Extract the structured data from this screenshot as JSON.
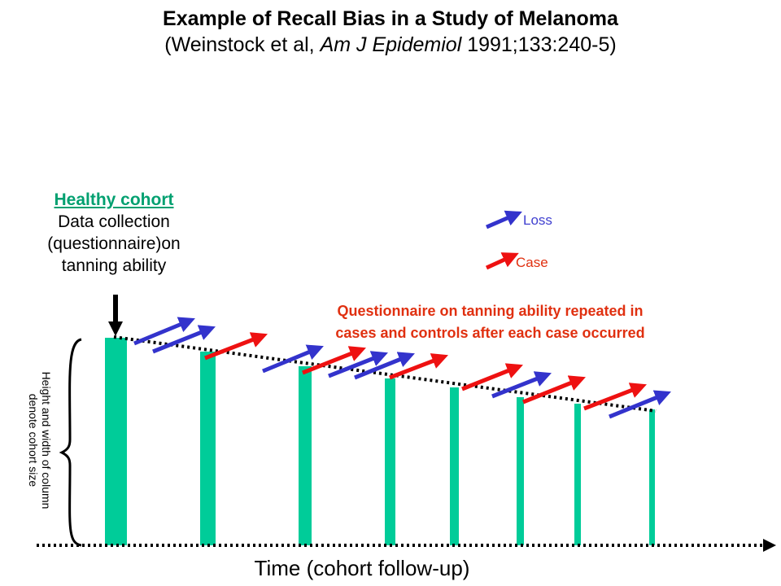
{
  "title": {
    "main": "Example of Recall Bias in a Study of Melanoma",
    "sub_prefix": "(Weinstock et al, ",
    "sub_journal": "Am J Epidemiol",
    "sub_suffix": " 1991;133:240-5)"
  },
  "healthy": {
    "heading": "Healthy cohort",
    "line1": "Data collection",
    "line2": "(questionnaire)on",
    "line3": "tanning ability"
  },
  "legend": {
    "loss": "Loss",
    "case": "Case"
  },
  "questionnaire_note": {
    "line1": "Questionnaire on tanning ability repeated in",
    "line2": "cases and controls after each case occurred"
  },
  "vertical_note": {
    "line1": "Height and width of column",
    "line2": "denote cohort size"
  },
  "x_axis_label": "Time (cohort follow-up)",
  "colors": {
    "column": "#00cc99",
    "loss_arrow": "#3333cc",
    "case_arrow": "#ee1111",
    "note_text": "#e03010",
    "healthy_heading": "#00a070"
  }
}
